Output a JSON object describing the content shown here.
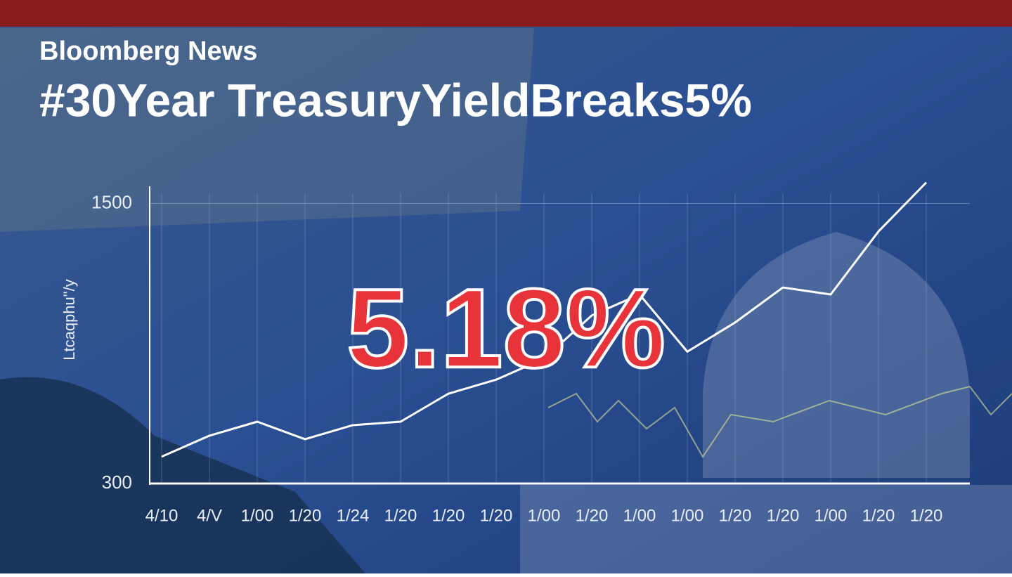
{
  "chart_data": {
    "type": "line",
    "source": "Bloomberg News",
    "title": "#30Year TreasuryYieldBreaks5%",
    "highlight": "5.18%",
    "y_label": "Ltcaqphu\"/y",
    "categories": [
      "4/10",
      "4/V",
      "1/00",
      "1/20",
      "1/24",
      "1/20",
      "1/20",
      "1/20",
      "1/00",
      "1/20",
      "1/00",
      "1/00",
      "1/20",
      "1/20",
      "1/00",
      "1/20",
      "1/20"
    ],
    "series": [
      {
        "color": "#ffffff",
        "values": [
          415,
          505,
          565,
          490,
          550,
          565,
          685,
          745,
          835,
          1020,
          1110,
          865,
          990,
          1140,
          1110,
          1380,
          1590
        ]
      }
    ],
    "ylim": [
      300,
      1625
    ],
    "yticks": [
      300,
      1500
    ],
    "grid": true
  }
}
